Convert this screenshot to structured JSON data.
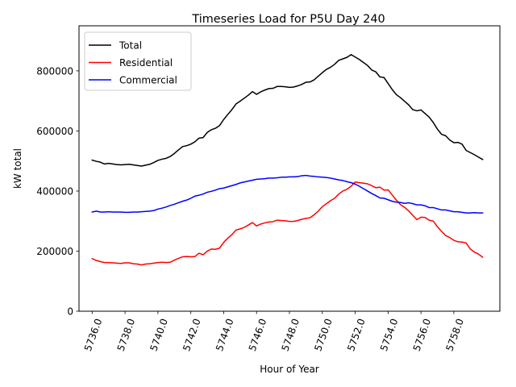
{
  "chart_data": {
    "type": "line",
    "title": "Timeseries Load for P5U   Day 240",
    "xlabel": "Hour of Year",
    "ylabel": "kW total",
    "xlim": [
      5735.2,
      5760.8
    ],
    "ylim": [
      0,
      950000
    ],
    "x_ticks": [
      5736,
      5738,
      5740,
      5742,
      5744,
      5746,
      5748,
      5750,
      5752,
      5754,
      5756,
      5758
    ],
    "x_tick_labels": [
      "5736.0",
      "5738.0",
      "5740.0",
      "5742.0",
      "5744.0",
      "5746.0",
      "5748.0",
      "5750.0",
      "5752.0",
      "5754.0",
      "5756.0",
      "5758.0"
    ],
    "y_ticks": [
      0,
      200000,
      400000,
      600000,
      800000
    ],
    "y_tick_labels": [
      "0",
      "200000",
      "400000",
      "600000",
      "800000"
    ],
    "grid": false,
    "legend": "upper left",
    "x": [
      5736.0,
      5736.25,
      5736.5,
      5736.75,
      5737.0,
      5737.25,
      5737.5,
      5737.75,
      5738.0,
      5738.25,
      5738.5,
      5738.75,
      5739.0,
      5739.25,
      5739.5,
      5739.75,
      5740.0,
      5740.25,
      5740.5,
      5740.75,
      5741.0,
      5741.25,
      5741.5,
      5741.75,
      5742.0,
      5742.25,
      5742.5,
      5742.75,
      5743.0,
      5743.25,
      5743.5,
      5743.75,
      5744.0,
      5744.25,
      5744.5,
      5744.75,
      5745.0,
      5745.25,
      5745.5,
      5745.75,
      5746.0,
      5746.25,
      5746.5,
      5746.75,
      5747.0,
      5747.25,
      5747.5,
      5747.75,
      5748.0,
      5748.25,
      5748.5,
      5748.75,
      5749.0,
      5749.25,
      5749.5,
      5749.75,
      5750.0,
      5750.25,
      5750.5,
      5750.75,
      5751.0,
      5751.25,
      5751.5,
      5751.75,
      5752.0,
      5752.25,
      5752.5,
      5752.75,
      5753.0,
      5753.25,
      5753.5,
      5753.75,
      5754.0,
      5754.25,
      5754.5,
      5754.75,
      5755.0,
      5755.25,
      5755.5,
      5755.75,
      5756.0,
      5756.25,
      5756.5,
      5756.75,
      5757.0,
      5757.25,
      5757.5,
      5757.75,
      5758.0,
      5758.25,
      5758.5,
      5758.75,
      5759.0,
      5759.25,
      5759.5,
      5759.75
    ],
    "series": [
      {
        "name": "Total",
        "color": "#000000",
        "values": [
          503000,
          499000,
          496000,
          490000,
          492000,
          490000,
          488000,
          487000,
          488000,
          489000,
          487000,
          485000,
          483000,
          486000,
          489000,
          495000,
          502000,
          506000,
          509000,
          515000,
          525000,
          537000,
          548000,
          551000,
          556000,
          564000,
          576000,
          578000,
          595000,
          604000,
          609000,
          618000,
          638000,
          655000,
          671000,
          690000,
          699000,
          709000,
          719000,
          731000,
          722000,
          730000,
          736000,
          741000,
          742000,
          748000,
          748000,
          747000,
          745000,
          746000,
          750000,
          755000,
          762000,
          763000,
          770000,
          782000,
          794000,
          805000,
          812000,
          822000,
          835000,
          840000,
          845000,
          854000,
          846000,
          838000,
          828000,
          818000,
          803000,
          797000,
          780000,
          778000,
          758000,
          738000,
          721000,
          711000,
          699000,
          687000,
          671000,
          667000,
          670000,
          658000,
          646000,
          628000,
          606000,
          589000,
          584000,
          570000,
          561000,
          562000,
          556000,
          535000,
          528000,
          521000,
          513000,
          505000
        ]
      },
      {
        "name": "Residential",
        "color": "#ff0000",
        "values": [
          175000,
          169000,
          165000,
          162000,
          162000,
          161000,
          160000,
          159000,
          161000,
          161000,
          158000,
          157000,
          154000,
          157000,
          158000,
          160000,
          162000,
          163000,
          162000,
          163000,
          170000,
          176000,
          181000,
          182000,
          181000,
          182000,
          193000,
          188000,
          200000,
          207000,
          206000,
          210000,
          229000,
          243000,
          255000,
          270000,
          274000,
          279000,
          287000,
          295000,
          284000,
          290000,
          294000,
          297000,
          298000,
          303000,
          302000,
          301000,
          299000,
          299000,
          302000,
          306000,
          309000,
          311000,
          321000,
          333000,
          348000,
          358000,
          368000,
          376000,
          390000,
          400000,
          406000,
          416000,
          430000,
          428000,
          426000,
          424000,
          418000,
          411000,
          413000,
          403000,
          404000,
          387000,
          370000,
          355000,
          346000,
          334000,
          319000,
          305000,
          313000,
          312000,
          303000,
          300000,
          281000,
          266000,
          252000,
          245000,
          236000,
          231000,
          230000,
          227000,
          207000,
          197000,
          190000,
          180000
        ]
      },
      {
        "name": "Commercial",
        "color": "#0000ff",
        "values": [
          330000,
          333000,
          330000,
          330000,
          331000,
          330000,
          330000,
          330000,
          329000,
          329000,
          330000,
          330000,
          331000,
          332000,
          333000,
          335000,
          340000,
          343000,
          347000,
          352000,
          356000,
          361000,
          366000,
          370000,
          376000,
          383000,
          386000,
          390000,
          396000,
          399000,
          403000,
          408000,
          410000,
          414000,
          418000,
          422000,
          427000,
          430000,
          433000,
          436000,
          439000,
          440000,
          441000,
          443000,
          443000,
          444000,
          446000,
          446000,
          447000,
          447000,
          448000,
          451000,
          452000,
          450000,
          449000,
          447000,
          446000,
          445000,
          443000,
          440000,
          437000,
          435000,
          431000,
          428000,
          423000,
          416000,
          408000,
          400000,
          392000,
          385000,
          377000,
          376000,
          371000,
          366000,
          363000,
          362000,
          359000,
          361000,
          358000,
          354000,
          354000,
          351000,
          345000,
          345000,
          341000,
          337000,
          337000,
          334000,
          331000,
          331000,
          329000,
          327000,
          327000,
          328000,
          327000,
          327000
        ]
      }
    ]
  }
}
